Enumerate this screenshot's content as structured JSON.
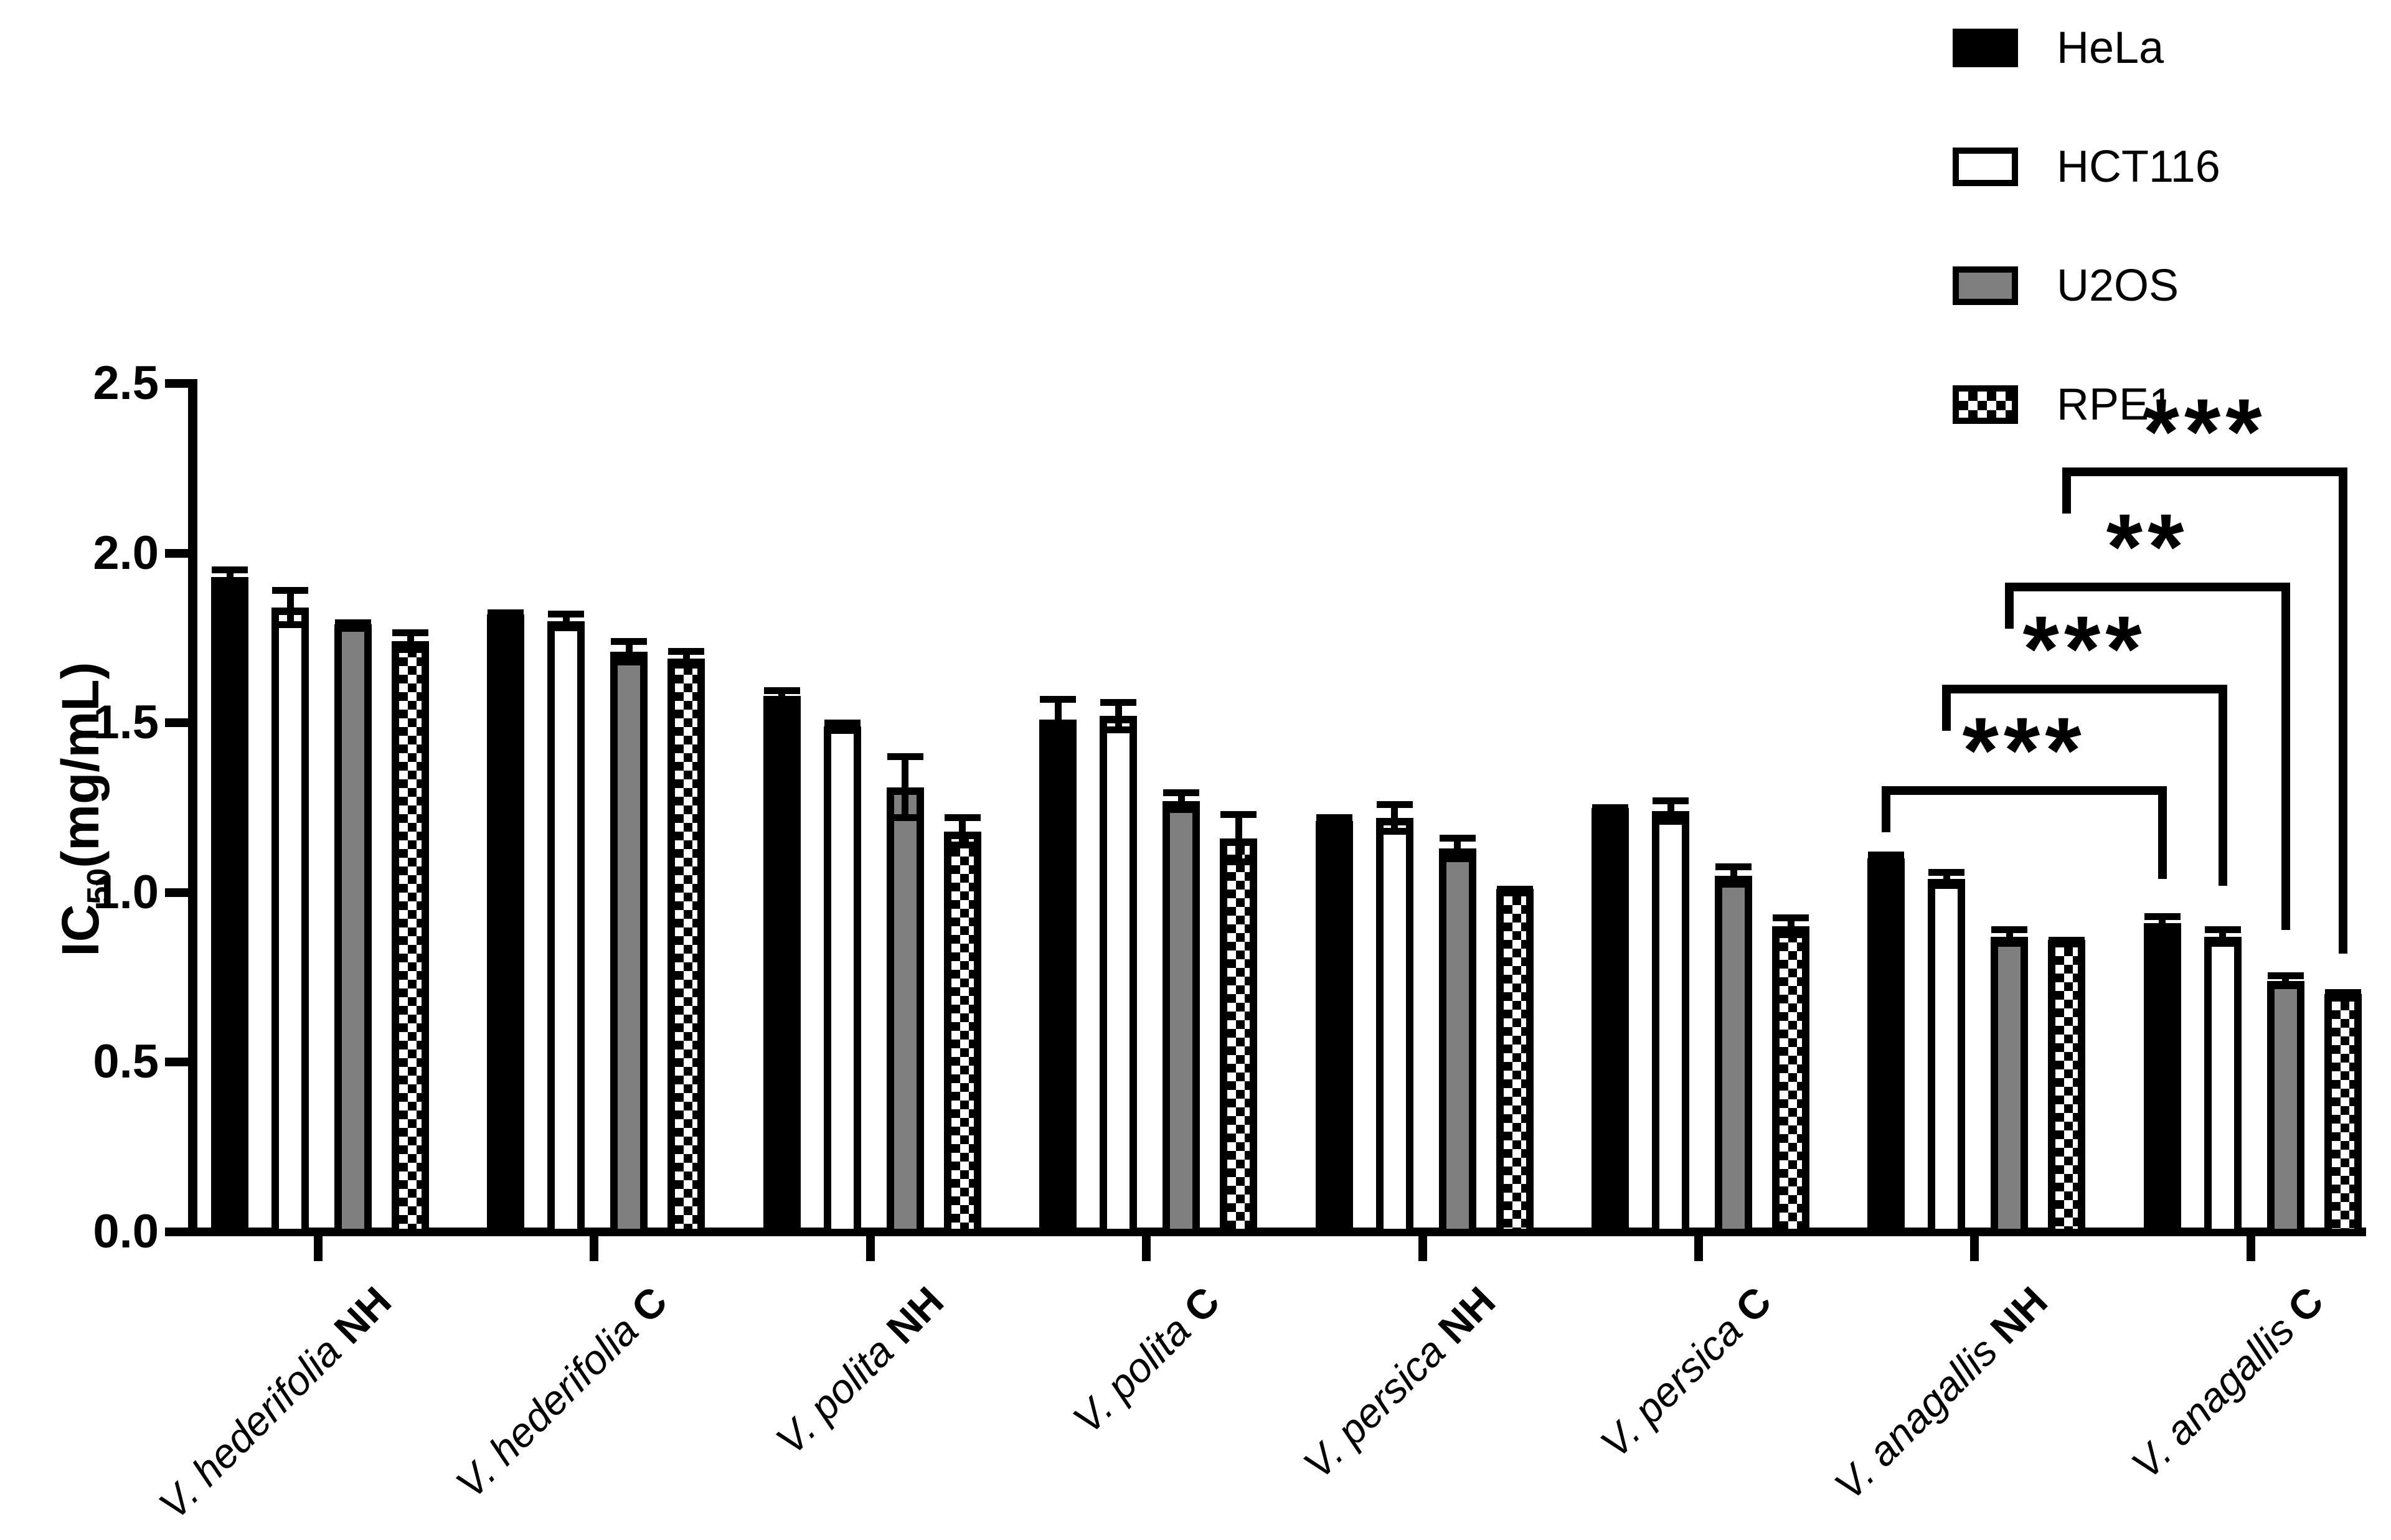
{
  "y_axis": {
    "label_prefix": "IC",
    "label_subscript": "50",
    "label_suffix": "(mg/mL)",
    "tick_labels": [
      "0.0",
      "0.5",
      "1.0",
      "1.5",
      "2.0",
      "2.5"
    ]
  },
  "legend": {
    "position": "top-right",
    "items": [
      {
        "label": "HeLa",
        "pattern": "solid-black"
      },
      {
        "label": "HCT116",
        "pattern": "white"
      },
      {
        "label": "U2OS",
        "pattern": "solid-gray"
      },
      {
        "label": "RPE1",
        "pattern": "checkerboard"
      }
    ]
  },
  "colors": {
    "foreground": "#000000",
    "background": "#ffffff",
    "gray_fill": "#7f7f7f"
  },
  "chart_data": {
    "type": "bar",
    "title": "",
    "xlabel": "",
    "ylabel": "IC50(mg/mL)",
    "ylim": [
      0,
      2.5
    ],
    "yticks": [
      0.0,
      0.5,
      1.0,
      1.5,
      2.0,
      2.5
    ],
    "grid": false,
    "legend_position": "top-right",
    "categories": [
      {
        "species": "V. hederifolia",
        "treatment": "NH"
      },
      {
        "species": "V. hederifolia",
        "treatment": "C"
      },
      {
        "species": "V. polita",
        "treatment": "NH"
      },
      {
        "species": "V. polita",
        "treatment": "C"
      },
      {
        "species": "V. persica",
        "treatment": "NH"
      },
      {
        "species": "V. persica",
        "treatment": "C"
      },
      {
        "species": "V. anagallis",
        "treatment": "NH"
      },
      {
        "species": "V. anagallis",
        "treatment": "C"
      }
    ],
    "series": [
      {
        "name": "HeLa",
        "pattern": "solid-black",
        "values": [
          1.93,
          1.82,
          1.58,
          1.51,
          1.21,
          1.25,
          1.1,
          0.91
        ],
        "errors": [
          0.03,
          0.015,
          0.025,
          0.07,
          0.02,
          0.01,
          0.02,
          0.03
        ]
      },
      {
        "name": "HCT116",
        "pattern": "white",
        "values": [
          1.84,
          1.8,
          1.49,
          1.52,
          1.22,
          1.24,
          1.04,
          0.87
        ],
        "errors": [
          0.06,
          0.03,
          0.02,
          0.05,
          0.05,
          0.04,
          0.03,
          0.03
        ]
      },
      {
        "name": "U2OS",
        "pattern": "solid-gray",
        "values": [
          1.79,
          1.71,
          1.31,
          1.27,
          1.13,
          1.05,
          0.87,
          0.74
        ],
        "errors": [
          0.015,
          0.04,
          0.1,
          0.035,
          0.04,
          0.035,
          0.03,
          0.025
        ]
      },
      {
        "name": "RPE1",
        "pattern": "checkerboard",
        "values": [
          1.74,
          1.69,
          1.18,
          1.16,
          1.01,
          0.9,
          0.86,
          0.7
        ],
        "errors": [
          0.035,
          0.03,
          0.05,
          0.08,
          0.01,
          0.035,
          0.01,
          0.015
        ]
      }
    ],
    "significance_brackets": [
      {
        "label": "***",
        "series": "HeLa",
        "group_a": "V. anagallis NH",
        "group_b": "V. anagallis C",
        "level": 1.3,
        "right_leg_bottom": 1.04
      },
      {
        "label": "***",
        "series": "HCT116",
        "group_a": "V. anagallis NH",
        "group_b": "V. anagallis C",
        "level": 1.6,
        "right_leg_bottom": 1.02
      },
      {
        "label": "**",
        "series": "U2OS",
        "group_a": "V. anagallis NH",
        "group_b": "V. anagallis C",
        "level": 1.9,
        "right_leg_bottom": 0.89
      },
      {
        "label": "***",
        "series": "RPE1",
        "group_a": "V. anagallis NH",
        "group_b": "V. anagallis C",
        "level": 2.24,
        "right_leg_bottom": 0.82
      }
    ]
  }
}
